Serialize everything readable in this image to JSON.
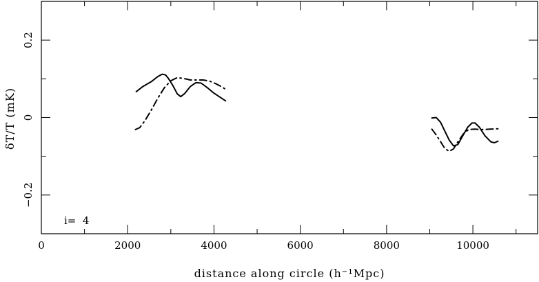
{
  "chart_data": {
    "type": "line",
    "title": "",
    "xlabel": "distance along circle (h⁻¹Mpc)",
    "ylabel": "δT/T (mK)",
    "xlim": [
      0,
      11500
    ],
    "ylim": [
      -0.3,
      0.3
    ],
    "x_ticks": [
      0,
      2000,
      4000,
      6000,
      8000,
      10000
    ],
    "x_tick_labels": [
      "0",
      "2000",
      "4000",
      "6000",
      "8000",
      "10000"
    ],
    "x_minor_step": 1000,
    "y_ticks": [
      -0.2,
      0,
      0.2
    ],
    "y_tick_labels": [
      "−0.2",
      "0",
      "0.2"
    ],
    "y_minor_step": 0.1,
    "grid": false,
    "annotation": "i=  4",
    "series": [
      {
        "style": "solid",
        "segments": [
          [
            [
              2200,
              0.067
            ],
            [
              2350,
              0.08
            ],
            [
              2550,
              0.093
            ],
            [
              2700,
              0.106
            ],
            [
              2800,
              0.112
            ],
            [
              2880,
              0.11
            ],
            [
              2950,
              0.1
            ],
            [
              3050,
              0.082
            ],
            [
              3150,
              0.061
            ],
            [
              3230,
              0.054
            ],
            [
              3320,
              0.062
            ],
            [
              3450,
              0.08
            ],
            [
              3580,
              0.09
            ],
            [
              3700,
              0.089
            ],
            [
              3850,
              0.077
            ],
            [
              4000,
              0.063
            ],
            [
              4150,
              0.052
            ],
            [
              4270,
              0.043
            ]
          ],
          [
            [
              9050,
              -0.001
            ],
            [
              9150,
              0.0
            ],
            [
              9250,
              -0.012
            ],
            [
              9350,
              -0.035
            ],
            [
              9450,
              -0.058
            ],
            [
              9550,
              -0.073
            ],
            [
              9650,
              -0.07
            ],
            [
              9750,
              -0.05
            ],
            [
              9880,
              -0.025
            ],
            [
              9980,
              -0.014
            ],
            [
              10050,
              -0.014
            ],
            [
              10150,
              -0.025
            ],
            [
              10280,
              -0.047
            ],
            [
              10420,
              -0.063
            ],
            [
              10500,
              -0.065
            ],
            [
              10580,
              -0.061
            ]
          ]
        ]
      },
      {
        "style": "dashdot",
        "segments": [
          [
            [
              2180,
              -0.031
            ],
            [
              2280,
              -0.026
            ],
            [
              2400,
              -0.008
            ],
            [
              2550,
              0.02
            ],
            [
              2700,
              0.05
            ],
            [
              2850,
              0.077
            ],
            [
              3000,
              0.095
            ],
            [
              3150,
              0.103
            ],
            [
              3300,
              0.101
            ],
            [
              3450,
              0.097
            ],
            [
              3600,
              0.097
            ],
            [
              3750,
              0.097
            ],
            [
              3900,
              0.094
            ],
            [
              4050,
              0.087
            ],
            [
              4200,
              0.078
            ],
            [
              4270,
              0.073
            ]
          ],
          [
            [
              9050,
              -0.03
            ],
            [
              9150,
              -0.045
            ],
            [
              9250,
              -0.062
            ],
            [
              9350,
              -0.08
            ],
            [
              9450,
              -0.087
            ],
            [
              9550,
              -0.081
            ],
            [
              9650,
              -0.063
            ],
            [
              9780,
              -0.042
            ],
            [
              9900,
              -0.031
            ],
            [
              10050,
              -0.03
            ],
            [
              10200,
              -0.031
            ],
            [
              10400,
              -0.03
            ],
            [
              10580,
              -0.029
            ]
          ]
        ]
      }
    ]
  }
}
